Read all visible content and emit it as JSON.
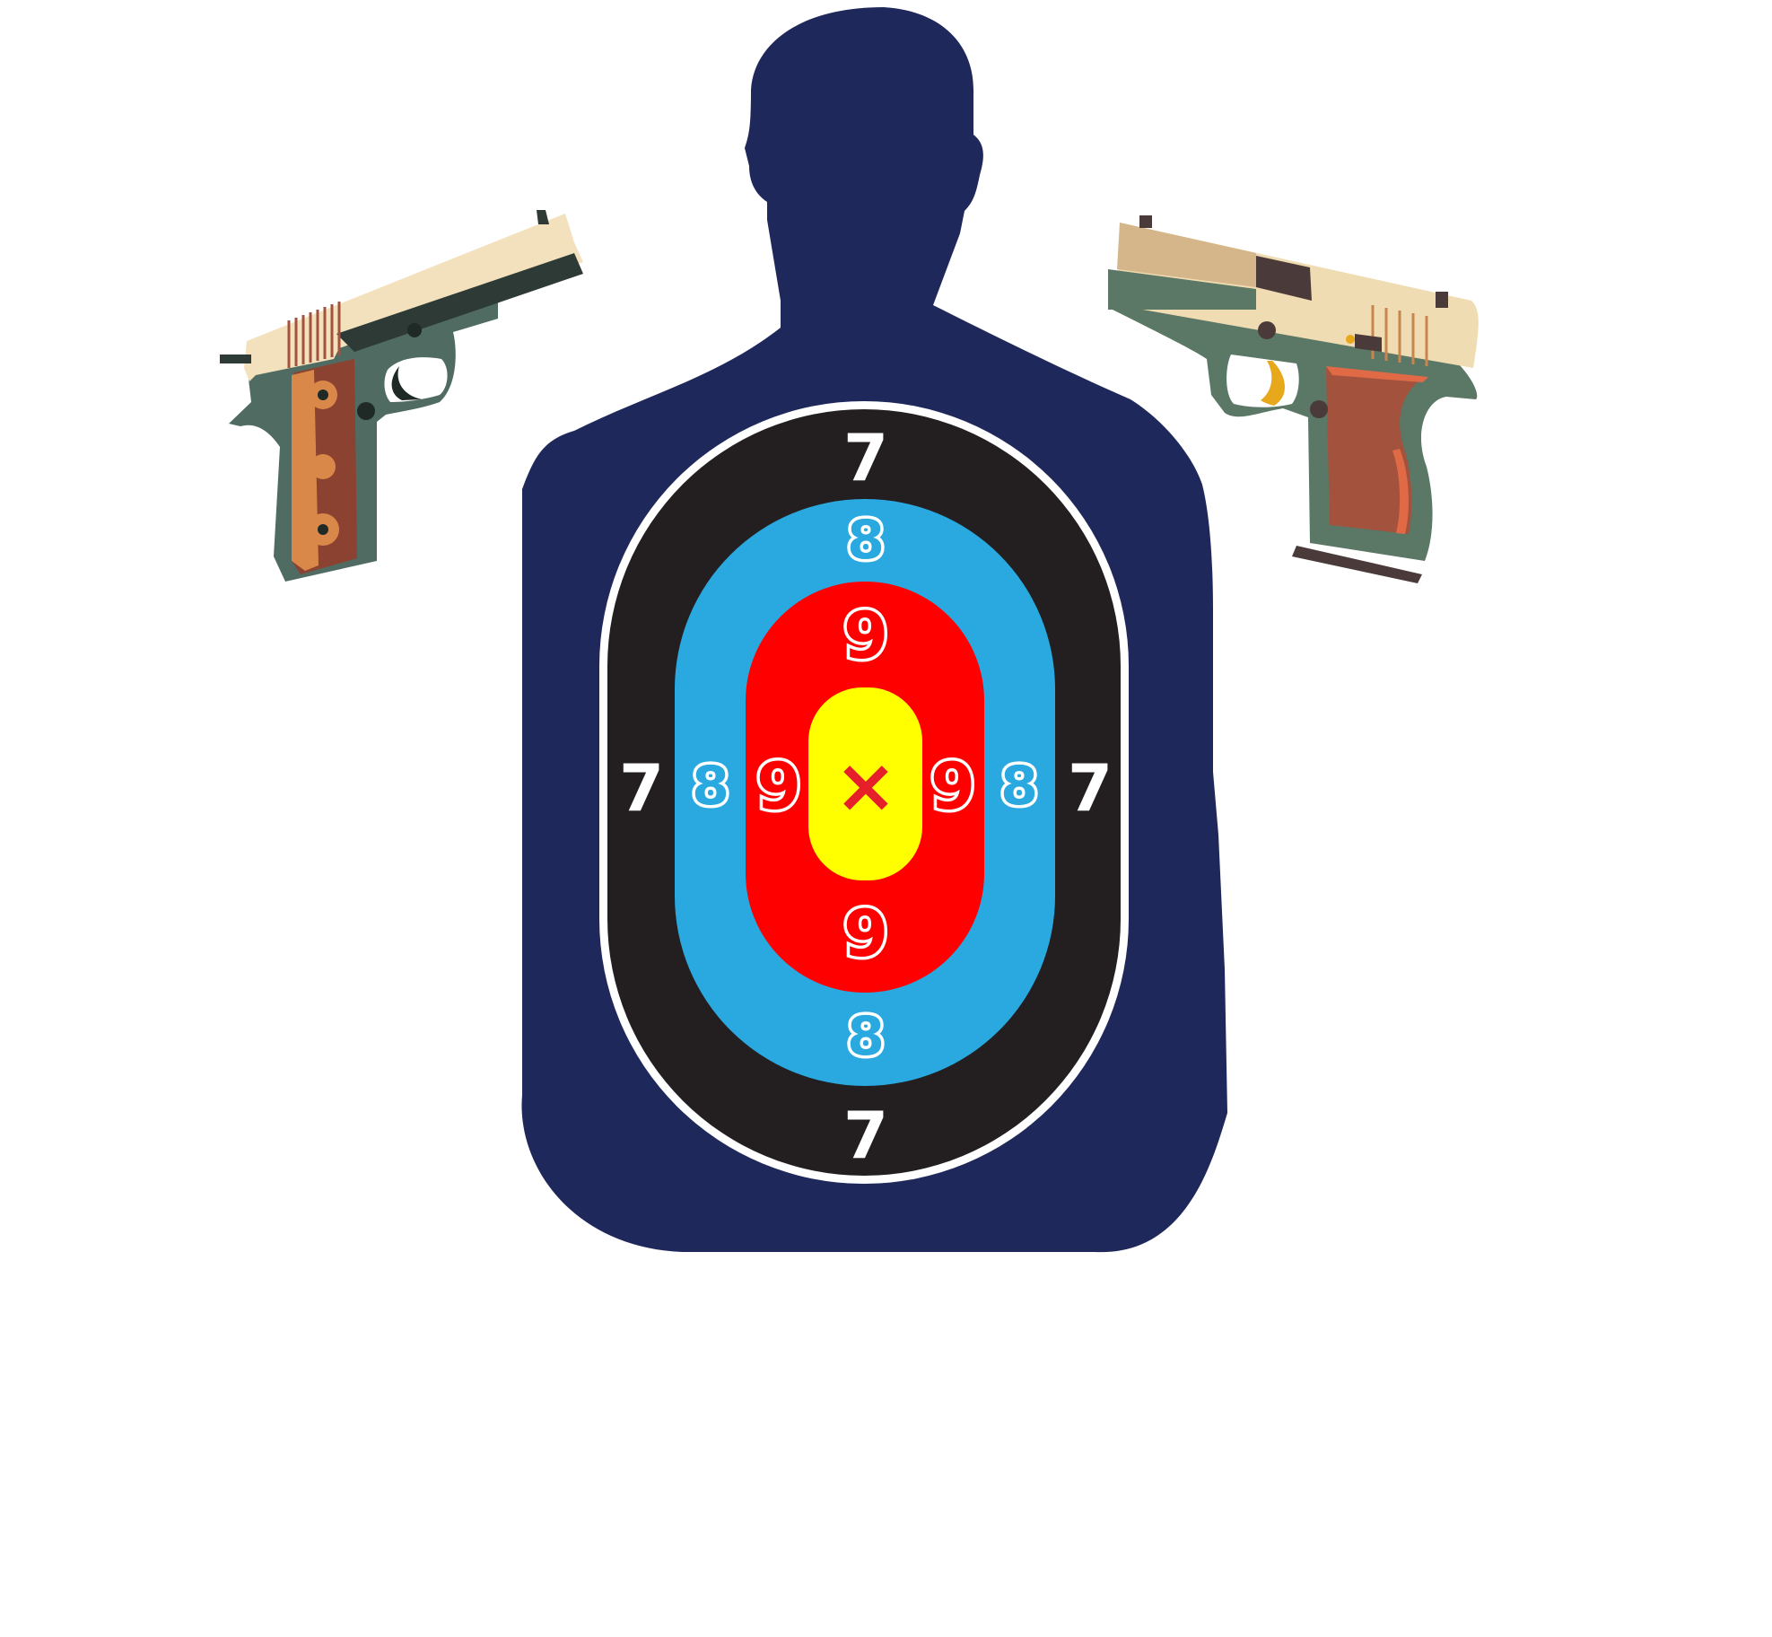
{
  "target": {
    "rings": [
      {
        "name": "outer-ring",
        "score": "7",
        "color": "#231f20"
      },
      {
        "name": "middle-ring",
        "score": "8",
        "color": "#29a9e0"
      },
      {
        "name": "inner-ring",
        "score": "9",
        "color": "#ff0000"
      },
      {
        "name": "center",
        "score": "",
        "color": "#ffff00"
      }
    ],
    "center_mark": "×",
    "silhouette_color": "#1f285a"
  },
  "pistols": [
    {
      "name": "left-pistol",
      "slide_color": "#f3e1bd",
      "frame_color": "#4f6b62",
      "grip_color": "#8b4230"
    },
    {
      "name": "right-pistol",
      "slide_color": "#f0dcb2",
      "frame_color": "#5b7766",
      "grip_color": "#a3533d"
    }
  ]
}
